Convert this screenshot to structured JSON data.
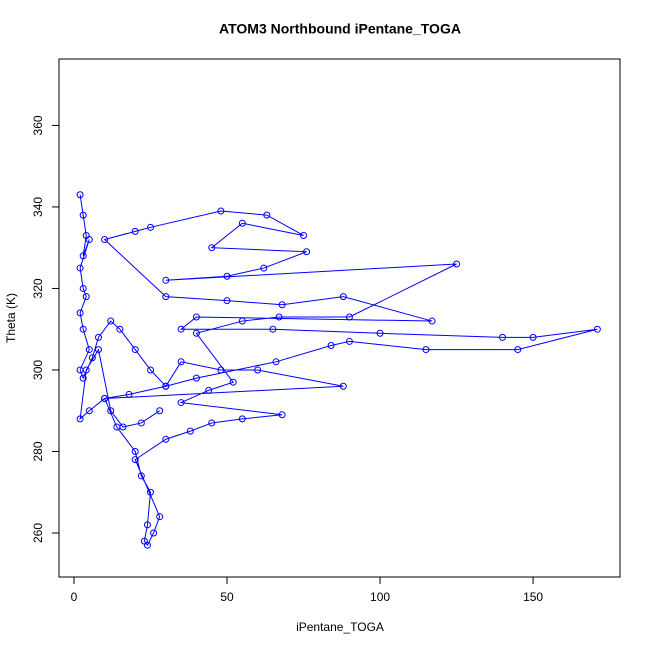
{
  "chart_data": {
    "type": "line",
    "title": "ATOM3 Northbound iPentane_TOGA",
    "x_label": "iPentane_TOGA",
    "y_label": "Theta (K)",
    "xlim": [
      -4.9,
      178.4
    ],
    "ylim": [
      249.2,
      376.3
    ],
    "xticks": [
      0,
      50,
      100,
      150
    ],
    "yticks": [
      260,
      280,
      300,
      320,
      340,
      360
    ],
    "markers": true,
    "grid": false,
    "x": [
      2,
      3,
      4,
      3,
      5,
      2,
      3,
      4,
      2,
      3,
      5,
      2,
      3,
      6,
      8,
      12,
      15,
      20,
      25,
      30,
      35,
      48,
      60,
      88,
      10,
      14,
      20,
      22,
      25,
      24,
      23,
      24,
      26,
      28,
      20,
      30,
      38,
      45,
      55,
      68,
      35,
      44,
      52,
      40,
      55,
      67,
      90,
      125,
      30,
      50,
      62,
      76,
      45,
      55,
      75,
      63,
      48,
      25,
      20,
      10,
      30,
      50,
      68,
      88,
      117,
      40,
      35,
      65,
      100,
      140,
      150,
      171,
      145,
      115,
      90,
      84,
      66,
      40,
      30,
      18,
      10,
      5,
      2,
      4,
      8,
      12,
      16,
      22,
      28
    ],
    "series": [
      {
        "name": "iPentane_TOGA",
        "color": "#0000ff",
        "values": [
          343,
          338,
          333,
          328,
          332,
          325,
          320,
          318,
          314,
          310,
          305,
          300,
          298,
          303,
          308,
          312,
          310,
          305,
          300,
          296,
          302,
          300,
          300,
          296,
          293,
          286,
          280,
          274,
          270,
          262,
          258,
          257,
          260,
          264,
          278,
          283,
          285,
          287,
          288,
          289,
          292,
          295,
          297,
          309,
          312,
          313,
          313,
          326,
          322,
          323,
          325,
          329,
          330,
          336,
          333,
          338,
          339,
          335,
          334,
          332,
          318,
          317,
          316,
          318,
          312,
          313,
          310,
          310,
          309,
          308,
          308,
          310,
          305,
          305,
          307,
          306,
          302,
          298,
          296,
          294,
          293,
          290,
          288,
          300,
          305,
          290,
          286,
          287,
          290
        ]
      }
    ]
  }
}
